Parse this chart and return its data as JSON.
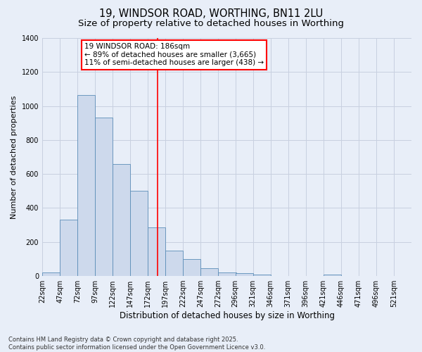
{
  "title1": "19, WINDSOR ROAD, WORTHING, BN11 2LU",
  "title2": "Size of property relative to detached houses in Worthing",
  "xlabel": "Distribution of detached houses by size in Worthing",
  "ylabel": "Number of detached properties",
  "bar_color": "#cdd9ec",
  "bar_edge_color": "#5b8db8",
  "bg_color": "#e8eef8",
  "fig_bg_color": "#e8eef8",
  "grid_color": "#c8d0e0",
  "bins": [
    22,
    47,
    72,
    97,
    122,
    147,
    172,
    197,
    222,
    247,
    272,
    296,
    321,
    346,
    371,
    396,
    421,
    446,
    471,
    496,
    521
  ],
  "counts": [
    20,
    330,
    1065,
    930,
    660,
    500,
    285,
    150,
    100,
    45,
    20,
    15,
    10,
    0,
    0,
    0,
    10,
    0,
    0,
    0,
    0
  ],
  "red_line_x": 186,
  "annotation_line1": "19 WINDSOR ROAD: 186sqm",
  "annotation_line2": "← 89% of detached houses are smaller (3,665)",
  "annotation_line3": "11% of semi-detached houses are larger (438) →",
  "ylim": [
    0,
    1400
  ],
  "yticks": [
    0,
    200,
    400,
    600,
    800,
    1000,
    1200,
    1400
  ],
  "footnote": "Contains HM Land Registry data © Crown copyright and database right 2025.\nContains public sector information licensed under the Open Government Licence v3.0.",
  "title1_fontsize": 10.5,
  "title2_fontsize": 9.5,
  "tick_fontsize": 7,
  "ylabel_fontsize": 8,
  "xlabel_fontsize": 8.5,
  "ann_fontsize": 7.5,
  "footnote_fontsize": 6
}
